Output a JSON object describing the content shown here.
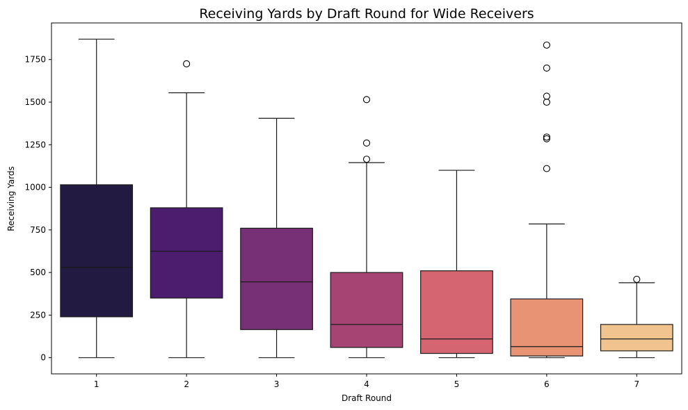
{
  "chart_data": {
    "type": "box",
    "title": "Receiving Yards by Draft Round for Wide Receivers",
    "xlabel": "Draft Round",
    "ylabel": "Receiving Yards",
    "ylim": [
      -95,
      1965
    ],
    "yticks": [
      0,
      250,
      500,
      750,
      1000,
      1250,
      1500,
      1750
    ],
    "grid": false,
    "categories": [
      "1",
      "2",
      "3",
      "4",
      "5",
      "6",
      "7"
    ],
    "boxes": [
      {
        "category": "1",
        "min": 0,
        "q1": 240,
        "median": 530,
        "q3": 1015,
        "max": 1870,
        "outliers": [],
        "color": "#221a41"
      },
      {
        "category": "2",
        "min": 0,
        "q1": 350,
        "median": 625,
        "q3": 880,
        "max": 1555,
        "outliers": [
          1725
        ],
        "color": "#4c1d6f"
      },
      {
        "category": "3",
        "min": 0,
        "q1": 165,
        "median": 445,
        "q3": 760,
        "max": 1405,
        "outliers": [],
        "color": "#772f76"
      },
      {
        "category": "4",
        "min": 0,
        "q1": 60,
        "median": 195,
        "q3": 500,
        "max": 1145,
        "outliers": [
          1165,
          1260,
          1515
        ],
        "color": "#a64574"
      },
      {
        "category": "5",
        "min": 0,
        "q1": 25,
        "median": 110,
        "q3": 510,
        "max": 1100,
        "outliers": [],
        "color": "#d46571"
      },
      {
        "category": "6",
        "min": 0,
        "q1": 10,
        "median": 65,
        "q3": 345,
        "max": 785,
        "outliers": [
          1110,
          1285,
          1295,
          1500,
          1535,
          1700,
          1835
        ],
        "color": "#e89373"
      },
      {
        "category": "7",
        "min": 0,
        "q1": 40,
        "median": 110,
        "q3": 195,
        "max": 440,
        "outliers": [
          460
        ],
        "color": "#f0c38f"
      }
    ]
  }
}
